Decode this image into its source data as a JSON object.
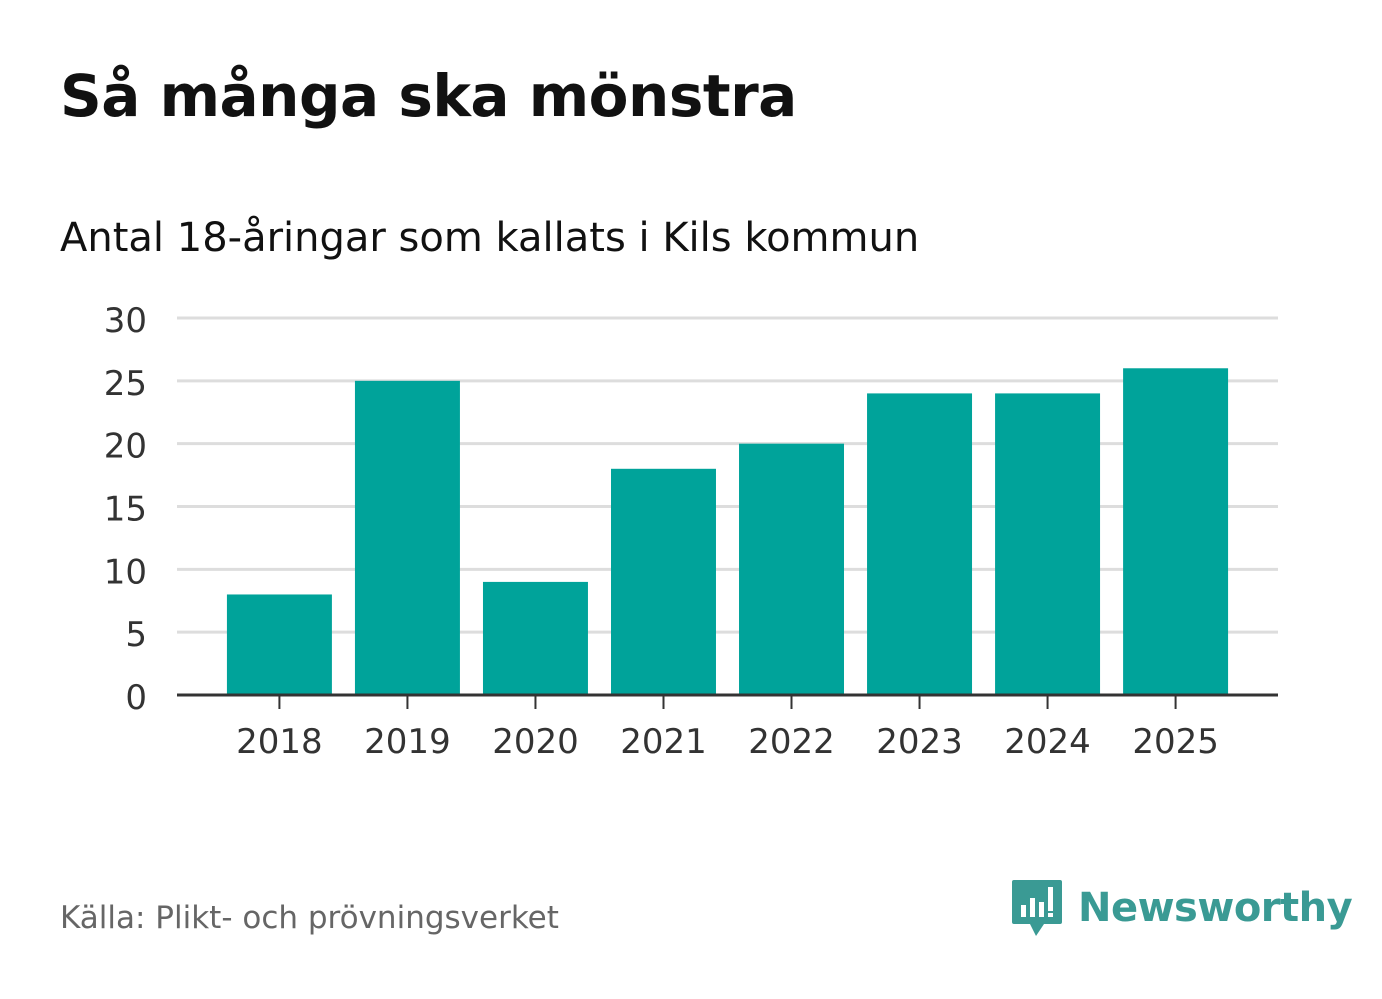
{
  "header": {
    "title": "Så många ska mönstra",
    "subtitle": "Antal 18-åringar som kallats i Kils kommun"
  },
  "footer": {
    "source": "Källa: Plikt- och prövningsverket",
    "brand": "Newsworthy",
    "brand_icon": "chat-bars-icon"
  },
  "colors": {
    "bar": "#00a39a",
    "brand": "#3a9a94",
    "grid": "#dddddd",
    "axis": "#333333",
    "tick_text": "#333333"
  },
  "chart_data": {
    "type": "bar",
    "title": "Så många ska mönstra",
    "subtitle": "Antal 18-åringar som kallats i Kils kommun",
    "xlabel": "",
    "ylabel": "",
    "categories": [
      "2018",
      "2019",
      "2020",
      "2021",
      "2022",
      "2023",
      "2024",
      "2025"
    ],
    "values": [
      8,
      25,
      9,
      18,
      20,
      24,
      24,
      26
    ],
    "ylim": [
      0,
      30
    ],
    "yticks": [
      0,
      5,
      10,
      15,
      20,
      25,
      30
    ],
    "grid": true,
    "legend": "none"
  }
}
